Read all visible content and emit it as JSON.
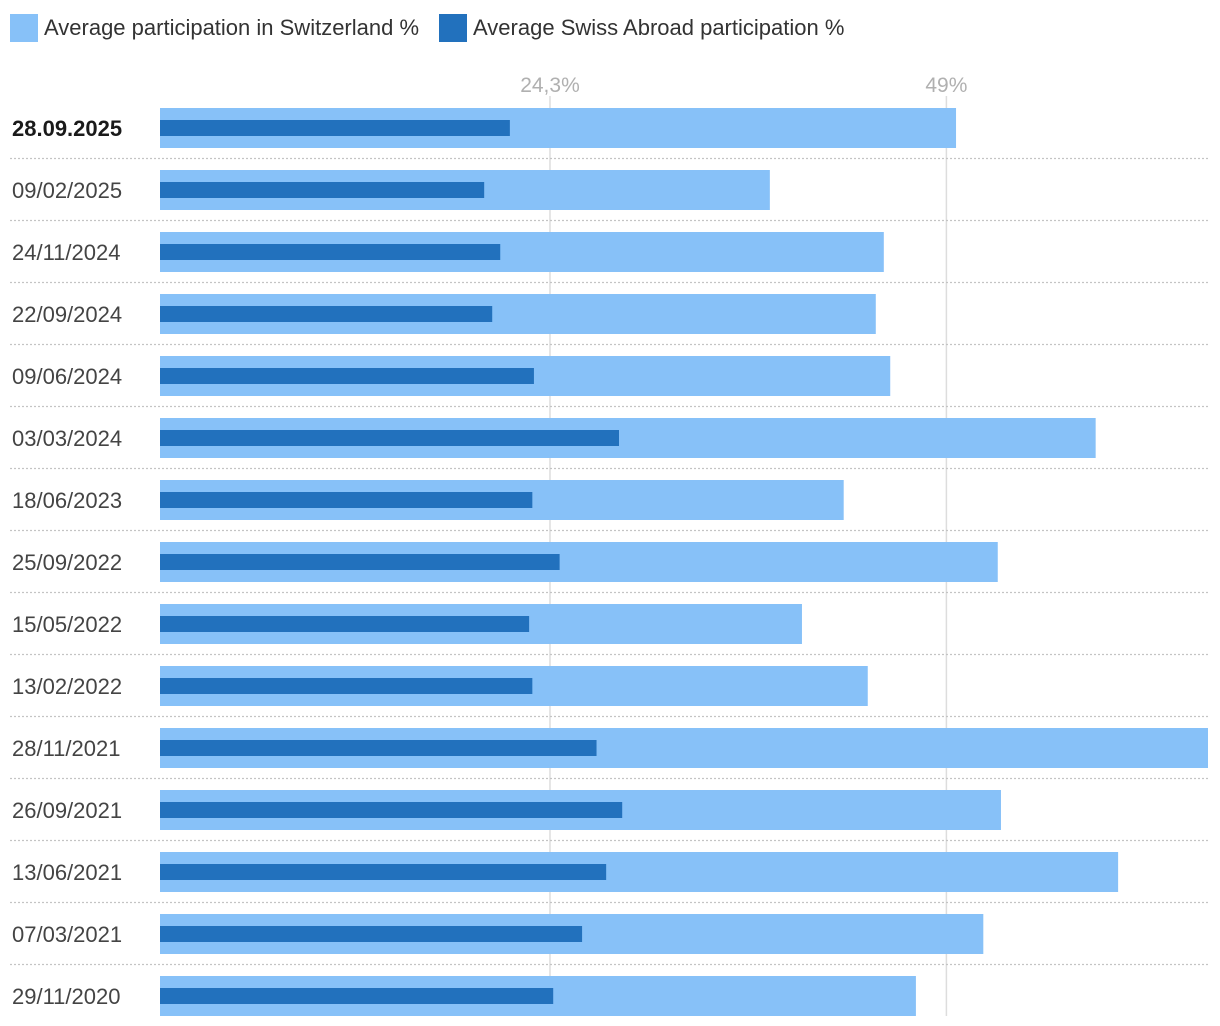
{
  "legend": {
    "items": [
      {
        "label": "Average participation in Switzerland %",
        "color": "#87c1f8"
      },
      {
        "label": "Average Swiss Abroad participation %",
        "color": "#2271bd"
      }
    ]
  },
  "chart_data": {
    "type": "bar",
    "orientation": "horizontal",
    "categories": [
      "28.09.2025",
      "09/02/2025",
      "24/11/2024",
      "22/09/2024",
      "09/06/2024",
      "03/03/2024",
      "18/06/2023",
      "25/09/2022",
      "15/05/2022",
      "13/02/2022",
      "28/11/2021",
      "26/09/2021",
      "13/06/2021",
      "07/03/2021",
      "29/11/2020"
    ],
    "highlight_category": "28.09.2025",
    "series": [
      {
        "name": "Average participation in Switzerland %",
        "color": "#87c1f8",
        "values": [
          49.6,
          38.0,
          45.1,
          44.6,
          45.5,
          58.3,
          42.6,
          52.2,
          40.0,
          44.1,
          65.3,
          52.4,
          59.7,
          51.3,
          47.1
        ]
      },
      {
        "name": "Average Swiss Abroad participation %",
        "color": "#2271bd",
        "values": [
          21.8,
          20.2,
          21.2,
          20.7,
          23.3,
          28.6,
          23.2,
          24.9,
          23.0,
          23.2,
          27.2,
          28.8,
          27.8,
          26.3,
          24.5
        ]
      }
    ],
    "reference_lines": [
      {
        "value": 24.3,
        "label": "24,3%"
      },
      {
        "value": 49,
        "label": "49%"
      }
    ],
    "xlim": [
      0,
      65.3
    ],
    "grid": "vertical reference lines only"
  }
}
